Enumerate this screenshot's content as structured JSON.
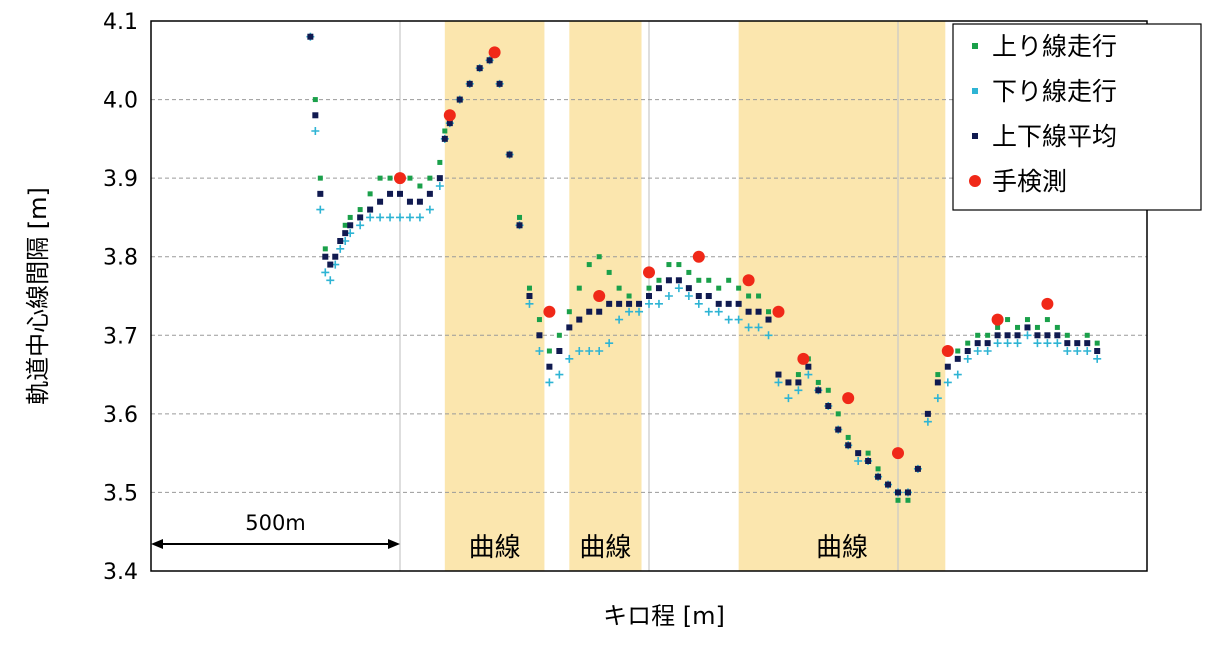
{
  "chart_data": {
    "type": "scatter",
    "xlabel": "キロ程 [m]",
    "ylabel": "軌道中心線間隔 [m]",
    "ylim": [
      3.4,
      4.1
    ],
    "yticks": [
      "3.4",
      "3.5",
      "3.6",
      "3.7",
      "3.8",
      "3.9",
      "4.0",
      "4.1"
    ],
    "grid": "horizontal dashed",
    "legend": "top-right",
    "scale_bar": {
      "label": "500m",
      "length_m": 500
    },
    "curve_bands": [
      {
        "label": "曲線",
        "from_m": 590,
        "to_m": 790
      },
      {
        "label": "曲線",
        "from_m": 840,
        "to_m": 985
      },
      {
        "label": "曲線",
        "from_m": 1180,
        "to_m": 1595
      }
    ],
    "series": [
      {
        "name": "上り線走行",
        "marker": "square",
        "color": "#1aa04a",
        "x": [
          320,
          330,
          340,
          350,
          360,
          370,
          380,
          390,
          400,
          420,
          440,
          460,
          480,
          500,
          520,
          540,
          560,
          580,
          590,
          600,
          620,
          640,
          660,
          680,
          700,
          720,
          740,
          760,
          780,
          800,
          820,
          840,
          860,
          880,
          900,
          920,
          940,
          960,
          980,
          1000,
          1020,
          1040,
          1060,
          1080,
          1100,
          1120,
          1140,
          1160,
          1180,
          1200,
          1220,
          1240,
          1260,
          1280,
          1300,
          1320,
          1340,
          1360,
          1380,
          1400,
          1420,
          1440,
          1460,
          1480,
          1500,
          1520,
          1540,
          1560,
          1580,
          1600,
          1620,
          1640,
          1660,
          1680,
          1700,
          1720,
          1740,
          1760,
          1780,
          1800,
          1820,
          1840,
          1860,
          1880,
          1900
        ],
        "y": [
          4.08,
          4.0,
          3.9,
          3.81,
          3.79,
          3.8,
          3.82,
          3.84,
          3.85,
          3.86,
          3.88,
          3.9,
          3.9,
          3.9,
          3.9,
          3.89,
          3.9,
          3.92,
          3.96,
          3.98,
          4.0,
          4.02,
          4.04,
          4.05,
          4.02,
          3.93,
          3.85,
          3.76,
          3.72,
          3.68,
          3.7,
          3.73,
          3.76,
          3.79,
          3.8,
          3.78,
          3.76,
          3.75,
          3.74,
          3.76,
          3.77,
          3.79,
          3.79,
          3.78,
          3.77,
          3.77,
          3.76,
          3.77,
          3.76,
          3.75,
          3.75,
          3.73,
          3.65,
          3.64,
          3.65,
          3.67,
          3.64,
          3.63,
          3.6,
          3.57,
          3.55,
          3.55,
          3.53,
          3.51,
          3.49,
          3.49,
          3.53,
          3.6,
          3.65,
          3.68,
          3.68,
          3.69,
          3.7,
          3.7,
          3.71,
          3.72,
          3.71,
          3.72,
          3.71,
          3.72,
          3.71,
          3.7,
          3.69,
          3.7,
          3.69
        ]
      },
      {
        "name": "下り線走行",
        "marker": "plus",
        "color": "#2eb4d4",
        "x": [
          320,
          330,
          340,
          350,
          360,
          370,
          380,
          390,
          400,
          420,
          440,
          460,
          480,
          500,
          520,
          540,
          560,
          580,
          590,
          600,
          620,
          640,
          660,
          680,
          700,
          720,
          740,
          760,
          780,
          800,
          820,
          840,
          860,
          880,
          900,
          920,
          940,
          960,
          980,
          1000,
          1020,
          1040,
          1060,
          1080,
          1100,
          1120,
          1140,
          1160,
          1180,
          1200,
          1220,
          1240,
          1260,
          1280,
          1300,
          1320,
          1340,
          1360,
          1380,
          1400,
          1420,
          1440,
          1460,
          1480,
          1500,
          1520,
          1540,
          1560,
          1580,
          1600,
          1620,
          1640,
          1660,
          1680,
          1700,
          1720,
          1740,
          1760,
          1780,
          1800,
          1820,
          1840,
          1860,
          1880,
          1900
        ],
        "y": [
          4.08,
          3.96,
          3.86,
          3.78,
          3.77,
          3.79,
          3.81,
          3.82,
          3.83,
          3.84,
          3.85,
          3.85,
          3.85,
          3.85,
          3.85,
          3.85,
          3.86,
          3.89,
          3.95,
          3.97,
          4.0,
          4.02,
          4.04,
          4.05,
          4.02,
          3.93,
          3.84,
          3.74,
          3.68,
          3.64,
          3.65,
          3.67,
          3.68,
          3.68,
          3.68,
          3.69,
          3.72,
          3.73,
          3.73,
          3.74,
          3.74,
          3.75,
          3.76,
          3.75,
          3.74,
          3.73,
          3.73,
          3.72,
          3.72,
          3.71,
          3.71,
          3.7,
          3.64,
          3.62,
          3.63,
          3.65,
          3.63,
          3.61,
          3.58,
          3.56,
          3.54,
          3.54,
          3.52,
          3.51,
          3.5,
          3.5,
          3.53,
          3.59,
          3.62,
          3.64,
          3.65,
          3.67,
          3.68,
          3.68,
          3.69,
          3.69,
          3.69,
          3.7,
          3.69,
          3.69,
          3.69,
          3.68,
          3.68,
          3.68,
          3.67
        ]
      },
      {
        "name": "上下線平均",
        "marker": "square",
        "color": "#101a50",
        "x": [
          320,
          330,
          340,
          350,
          360,
          370,
          380,
          390,
          400,
          420,
          440,
          460,
          480,
          500,
          520,
          540,
          560,
          580,
          590,
          600,
          620,
          640,
          660,
          680,
          700,
          720,
          740,
          760,
          780,
          800,
          820,
          840,
          860,
          880,
          900,
          920,
          940,
          960,
          980,
          1000,
          1020,
          1040,
          1060,
          1080,
          1100,
          1120,
          1140,
          1160,
          1180,
          1200,
          1220,
          1240,
          1260,
          1280,
          1300,
          1320,
          1340,
          1360,
          1380,
          1400,
          1420,
          1440,
          1460,
          1480,
          1500,
          1520,
          1540,
          1560,
          1580,
          1600,
          1620,
          1640,
          1660,
          1680,
          1700,
          1720,
          1740,
          1760,
          1780,
          1800,
          1820,
          1840,
          1860,
          1880,
          1900
        ],
        "y": [
          4.08,
          3.98,
          3.88,
          3.8,
          3.79,
          3.8,
          3.82,
          3.83,
          3.84,
          3.85,
          3.86,
          3.87,
          3.88,
          3.88,
          3.87,
          3.87,
          3.88,
          3.9,
          3.95,
          3.97,
          4.0,
          4.02,
          4.04,
          4.05,
          4.02,
          3.93,
          3.84,
          3.75,
          3.7,
          3.66,
          3.68,
          3.71,
          3.72,
          3.73,
          3.73,
          3.74,
          3.74,
          3.74,
          3.74,
          3.75,
          3.76,
          3.77,
          3.77,
          3.76,
          3.75,
          3.75,
          3.74,
          3.74,
          3.74,
          3.73,
          3.73,
          3.72,
          3.65,
          3.64,
          3.64,
          3.66,
          3.63,
          3.61,
          3.58,
          3.56,
          3.55,
          3.54,
          3.52,
          3.51,
          3.5,
          3.5,
          3.53,
          3.6,
          3.64,
          3.66,
          3.67,
          3.68,
          3.69,
          3.69,
          3.7,
          3.7,
          3.7,
          3.71,
          3.7,
          3.7,
          3.7,
          3.69,
          3.69,
          3.69,
          3.68
        ]
      },
      {
        "name": "手検測",
        "marker": "circle",
        "color": "#f02818",
        "x": [
          500,
          600,
          690,
          800,
          900,
          1000,
          1100,
          1200,
          1260,
          1310,
          1400,
          1500,
          1600,
          1700,
          1800
        ],
        "y": [
          3.9,
          3.98,
          4.06,
          3.73,
          3.75,
          3.78,
          3.8,
          3.77,
          3.73,
          3.67,
          3.62,
          3.55,
          3.68,
          3.72,
          3.74
        ]
      }
    ]
  }
}
